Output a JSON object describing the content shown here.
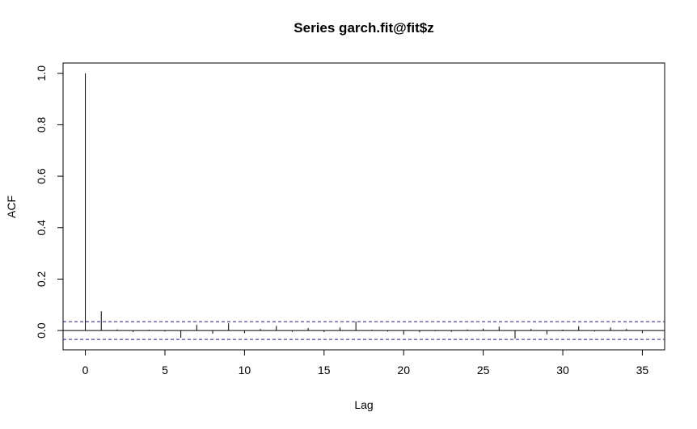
{
  "chart_data": {
    "type": "bar",
    "title": "Series  garch.fit@fit$z",
    "xlabel": "Lag",
    "ylabel": "ACF",
    "xlim": [
      -1.4,
      36.4
    ],
    "ylim": [
      -0.075,
      1.04
    ],
    "x_ticks": [
      "0",
      "5",
      "10",
      "15",
      "20",
      "25",
      "30",
      "35"
    ],
    "y_ticks": [
      "0.0",
      "0.2",
      "0.4",
      "0.6",
      "0.8",
      "1.0"
    ],
    "confidence_limit": 0.0345,
    "lags": [
      0,
      1,
      2,
      3,
      4,
      5,
      6,
      7,
      8,
      9,
      10,
      11,
      12,
      13,
      14,
      15,
      16,
      17,
      18,
      19,
      20,
      21,
      22,
      23,
      24,
      25,
      26,
      27,
      28,
      29,
      30,
      31,
      32,
      33,
      34,
      35
    ],
    "values": [
      1.0,
      0.075,
      0.004,
      -0.006,
      0.003,
      -0.004,
      -0.028,
      0.022,
      -0.012,
      0.028,
      -0.01,
      0.006,
      0.018,
      -0.005,
      0.01,
      -0.006,
      0.012,
      0.035,
      0.003,
      -0.004,
      -0.016,
      -0.007,
      -0.003,
      -0.005,
      0.004,
      0.007,
      0.015,
      -0.031,
      0.006,
      -0.015,
      0.004,
      0.017,
      -0.004,
      0.012,
      0.006,
      -0.01
    ],
    "colors": {
      "bars": "#000000",
      "confidence_lines": "#1f1fa0",
      "zero_line": "#000000"
    }
  }
}
